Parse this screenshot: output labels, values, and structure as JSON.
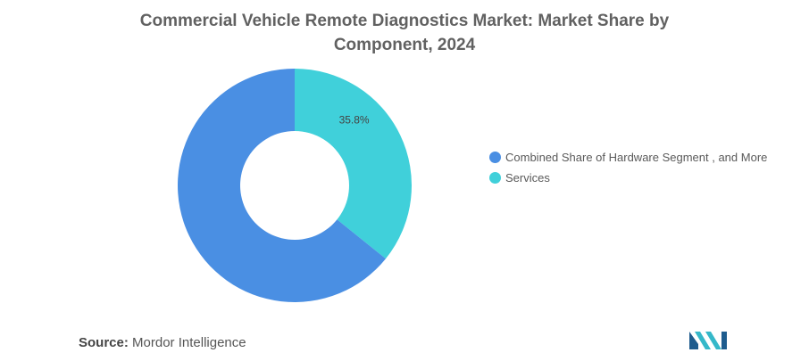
{
  "chart_data": {
    "type": "pie",
    "title": "Commercial Vehicle Remote Diagnostics Market: Market Share by Component, 2024",
    "series": [
      {
        "name": "Combined Share of Hardware Segment , and More",
        "value": 64.2,
        "color": "#4a8fe3"
      },
      {
        "name": "Services",
        "value": 35.8,
        "color": "#40d0da"
      }
    ],
    "data_labels": [
      {
        "series": "Services",
        "text": "35.8%"
      }
    ],
    "legend_position": "right",
    "hole": true
  },
  "source": {
    "label": "Source:",
    "text": "Mordor Intelligence"
  },
  "logo": {
    "icon": "mordor-intelligence-logo-icon",
    "colors": [
      "#1e5c8e",
      "#35b8c9"
    ]
  }
}
